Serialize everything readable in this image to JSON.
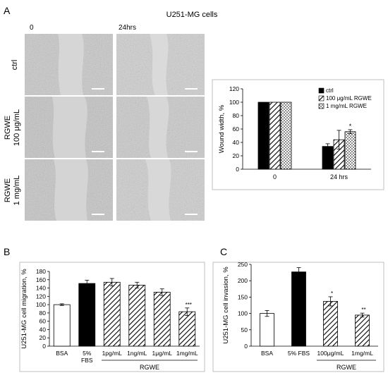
{
  "figure": {
    "panelA": {
      "label": "A",
      "title": "U251-MG cells",
      "time_labels": [
        "0",
        "24hrs"
      ],
      "row_labels": [
        [
          "ctrl"
        ],
        [
          "RGWE",
          "100 μg/mL"
        ],
        [
          "RGWE",
          "1 mg/mL"
        ]
      ]
    },
    "panelB": {
      "label": "B"
    },
    "panelC": {
      "label": "C"
    }
  },
  "colors": {
    "bar_ctrl": "#000000",
    "bar_open": "#ffffff",
    "micrograph": "#c8c8c8",
    "border": "#bfbfbf"
  },
  "chart_data": [
    {
      "id": "wound",
      "type": "bar",
      "ylabel": "Wound width, %",
      "categories": [
        "0",
        "24 hrs"
      ],
      "ylim": [
        0,
        120
      ],
      "yticks": [
        0,
        20,
        40,
        60,
        80,
        100,
        120
      ],
      "legend_position": "top-right",
      "series": [
        {
          "name": "ctrl",
          "fill": "solid",
          "values": [
            100,
            34
          ],
          "errors": [
            0,
            4
          ]
        },
        {
          "name": "100 μg/mL RGWE",
          "fill": "diagonal",
          "values": [
            100,
            44
          ],
          "errors": [
            0,
            14
          ]
        },
        {
          "name": "1 mg/mL RGWE",
          "fill": "dotted",
          "values": [
            100,
            56
          ],
          "errors": [
            0,
            3
          ]
        }
      ],
      "annotations": [
        {
          "category": 1,
          "series": 2,
          "text": "*"
        }
      ]
    },
    {
      "id": "migration",
      "type": "bar",
      "ylabel": "U251-MG cell migration, %",
      "xgroup_label": "RGWE",
      "ylim": [
        0,
        180
      ],
      "yticks": [
        0,
        20,
        40,
        60,
        80,
        100,
        120,
        140,
        160,
        180
      ],
      "categories": [
        "BSA",
        "5% FBS",
        "1pg/mL",
        "1ng/mL",
        "1μg/mL",
        "1mg/mL"
      ],
      "category_lines": [
        [
          "BSA"
        ],
        [
          "5%",
          "FBS"
        ],
        [
          "1pg/mL"
        ],
        [
          "1ng/mL"
        ],
        [
          "1μg/mL"
        ],
        [
          "1mg/mL"
        ]
      ],
      "values": [
        100,
        151,
        154,
        147,
        130,
        83
      ],
      "errors": [
        2,
        8,
        9,
        7,
        8,
        9
      ],
      "fills": [
        "open",
        "solid",
        "diagonal",
        "diagonal",
        "diagonal",
        "diagonal"
      ],
      "annotations": [
        {
          "index": 5,
          "text": "***"
        }
      ]
    },
    {
      "id": "invasion",
      "type": "bar",
      "ylabel": "U251-MG cell invasion, %",
      "xgroup_label": "RGWE",
      "ylim": [
        0,
        250
      ],
      "yticks": [
        0,
        50,
        100,
        150,
        200,
        250
      ],
      "categories": [
        "BSA",
        "5% FBS",
        "100μg/mL",
        "1mg/mL"
      ],
      "category_lines": [
        [
          "BSA"
        ],
        [
          "5% FBS"
        ],
        [
          "100μg/mL"
        ],
        [
          "1mg/mL"
        ]
      ],
      "values": [
        100,
        227,
        137,
        95
      ],
      "errors": [
        9,
        13,
        14,
        6
      ],
      "fills": [
        "open",
        "solid",
        "diagonal",
        "diagonal"
      ],
      "annotations": [
        {
          "index": 2,
          "text": "*"
        },
        {
          "index": 3,
          "text": "**"
        }
      ]
    }
  ]
}
